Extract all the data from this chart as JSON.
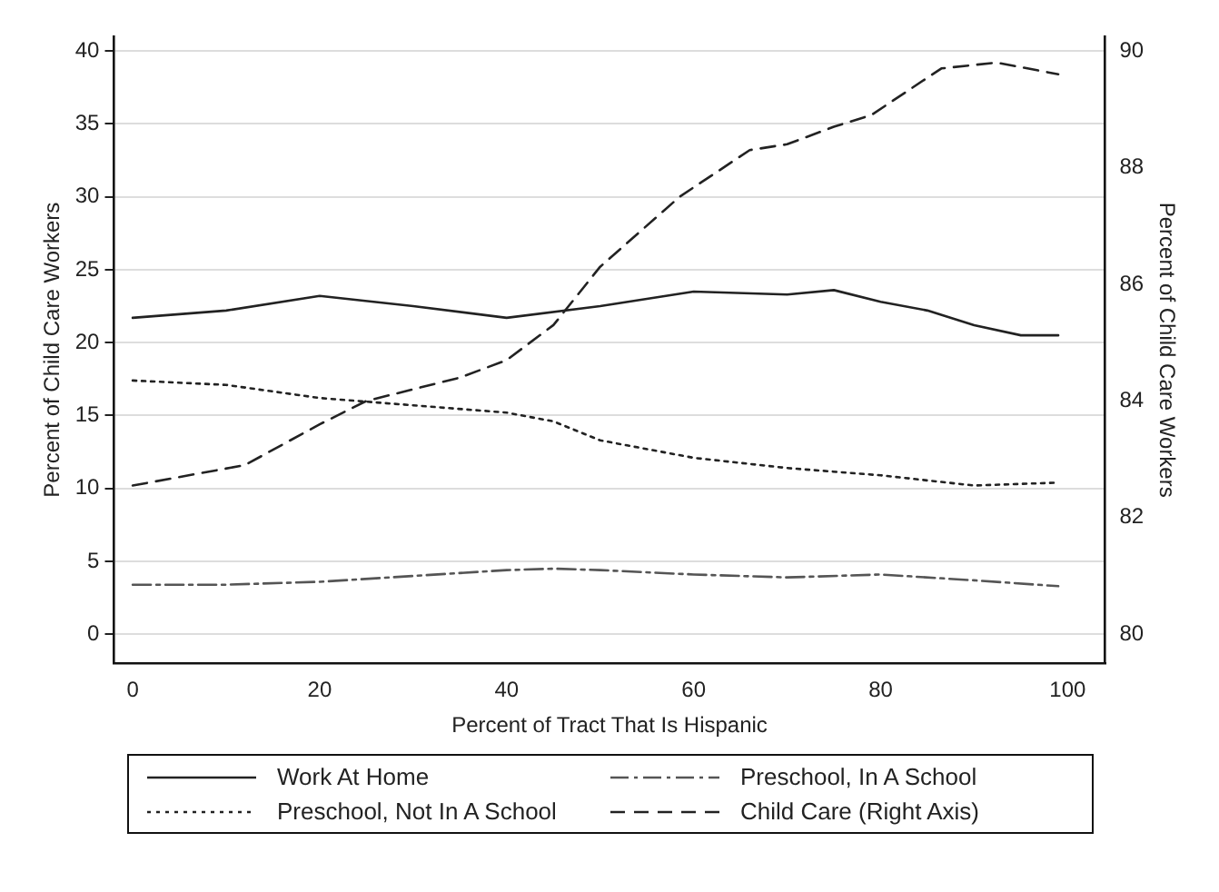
{
  "chart_data": {
    "type": "line",
    "xlabel": "Percent of Tract That Is Hispanic",
    "ylabel": "Percent of Child Care Workers",
    "y2label": "Percent of Child Care Workers",
    "xlim": [
      -2,
      104
    ],
    "xticks": [
      0,
      20,
      40,
      60,
      80,
      100
    ],
    "ylim": [
      -2,
      41
    ],
    "yticks": [
      0,
      5,
      10,
      15,
      20,
      25,
      30,
      35,
      40
    ],
    "y2lim": [
      79.5,
      90.25
    ],
    "y2ticks": [
      80,
      82,
      84,
      86,
      88,
      90
    ],
    "grid": "y",
    "legend": "bottom",
    "marker": "none",
    "series": [
      {
        "name": "Work At Home",
        "color": "#222222",
        "line_style": "solid",
        "x": [
          0,
          10,
          20,
          30,
          40,
          50,
          60,
          70,
          75,
          80,
          85,
          90,
          95,
          99
        ],
        "values": [
          21.7,
          22.2,
          23.2,
          22.5,
          21.7,
          22.5,
          23.5,
          23.3,
          23.6,
          22.8,
          22.2,
          21.2,
          20.5,
          20.5
        ]
      },
      {
        "name": "Preschool, In A School",
        "color": "#555555",
        "line_style": "dashdot",
        "x": [
          0,
          10,
          20,
          30,
          40,
          45,
          50,
          60,
          70,
          80,
          90,
          99
        ],
        "values": [
          3.4,
          3.4,
          3.6,
          4.0,
          4.4,
          4.5,
          4.4,
          4.1,
          3.9,
          4.1,
          3.7,
          3.3
        ]
      },
      {
        "name": "Preschool, Not In A School",
        "color": "#222222",
        "line_style": "dotted",
        "x": [
          0,
          10,
          20,
          30,
          40,
          45,
          50,
          60,
          70,
          80,
          90,
          99
        ],
        "values": [
          17.4,
          17.1,
          16.2,
          15.7,
          15.2,
          14.6,
          13.3,
          12.1,
          11.4,
          10.9,
          10.2,
          10.4
        ]
      },
      {
        "name": "Child Care (Right Axis)",
        "color": "#222222",
        "line_style": "dashed",
        "axis": "y2",
        "x": [
          0,
          12,
          20,
          25,
          30,
          35,
          40,
          45,
          50,
          58.5,
          66,
          70,
          75,
          79,
          86.5,
          92.4,
          99
        ],
        "values": [
          82.55,
          82.9,
          83.6,
          84.0,
          84.2,
          84.4,
          84.7,
          85.3,
          86.3,
          87.5,
          88.3,
          88.4,
          88.7,
          88.9,
          89.7,
          89.8,
          89.6
        ]
      }
    ]
  }
}
